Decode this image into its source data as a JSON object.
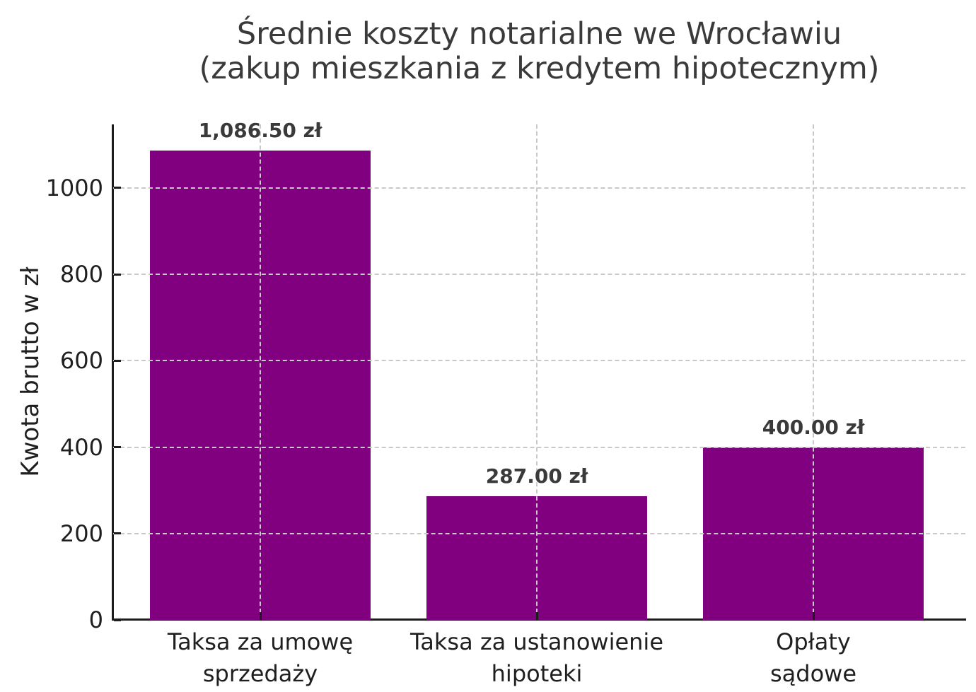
{
  "chart_data": {
    "type": "bar",
    "title": "Średnie koszty notarialne we Wrocławiu\n(zakup mieszkania z kredytem hipotecznym)",
    "xlabel": "",
    "ylabel": "Kwota brutto w zł",
    "categories": [
      "Taksa za umowę\nsprzedaży",
      "Taksa za ustanowienie\nhipoteki",
      "Opłaty\nsądowe"
    ],
    "values": [
      1086.5,
      287.0,
      400.0
    ],
    "value_labels": [
      "1,086.50 zł",
      "287.00 zł",
      "400.00 zł"
    ],
    "yticks": [
      0,
      200,
      400,
      600,
      800,
      1000
    ],
    "ylim": [
      0,
      1147
    ],
    "grid": true,
    "grid_style": "dashed",
    "grid_above_bars": true,
    "legend_position": "none",
    "bar_color": "#800080"
  },
  "colors": {
    "bar": "#800080",
    "title_text": "#3a3a3a",
    "value_label_text": "#3a3a3a",
    "tick_text": "#1f1f1f",
    "grid": "#c9c9c9",
    "spine": "#1c1c1c",
    "background": "#ffffff"
  }
}
